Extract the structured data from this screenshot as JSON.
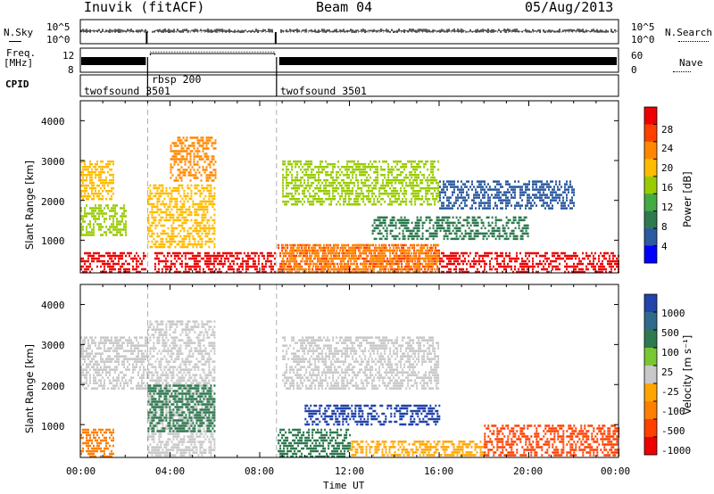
{
  "header": {
    "station": "Inuvik (fitACF)",
    "beam": "Beam 04",
    "date": "05/Aug/2013"
  },
  "side_labels": {
    "nsky": "N.Sky",
    "nsearch": "N.Search",
    "freq_line1": "Freq.",
    "freq_line2": "[MHz]",
    "nave": "Nave",
    "cpid": "CPID"
  },
  "top_axes": {
    "nsky_ticks": [
      "10^5",
      "10^0"
    ],
    "nsearch_ticks": [
      "10^5",
      "10^0"
    ],
    "freq_ticks": [
      "12",
      "8"
    ],
    "nave_ticks": [
      "60",
      "0"
    ]
  },
  "modes": [
    {
      "label": "twofsound 3501",
      "start_hour": 0,
      "end_hour": 3.0
    },
    {
      "label": "rbsp 200",
      "start_hour": 3.0,
      "end_hour": 8.75
    },
    {
      "label": "twofsound 3501",
      "start_hour": 8.75,
      "end_hour": 24
    }
  ],
  "chart_data": [
    {
      "type": "heatmap",
      "name": "power",
      "ylabel": "Slant Range [km]",
      "xlabel": "",
      "xlim_hours": [
        0,
        24
      ],
      "ylim": [
        180,
        4500
      ],
      "yticks": [
        "1000",
        "2000",
        "3000",
        "4000"
      ],
      "colorbar_label": "Power [dB]",
      "colorbar_ticks": [
        "28",
        "24",
        "20",
        "16",
        "12",
        "8",
        "4"
      ],
      "colors": [
        "#ee0000",
        "#ff4000",
        "#ff8800",
        "#ffbb00",
        "#99cc00",
        "#44aa44",
        "#2e7a50",
        "#2a5aa0",
        "#0000ff"
      ],
      "regions": [
        {
          "hours": [
            0.0,
            2.9
          ],
          "range_km": [
            200,
            700
          ],
          "level": 0
        },
        {
          "hours": [
            0.0,
            2.0
          ],
          "range_km": [
            1100,
            1900
          ],
          "level": 4
        },
        {
          "hours": [
            0.0,
            1.5
          ],
          "range_km": [
            2000,
            3000
          ],
          "level": 3
        },
        {
          "hours": [
            3.3,
            8.7
          ],
          "range_km": [
            200,
            700
          ],
          "level": 0
        },
        {
          "hours": [
            3.0,
            6.0
          ],
          "range_km": [
            800,
            2400
          ],
          "level": 3
        },
        {
          "hours": [
            4.0,
            6.0
          ],
          "range_km": [
            2500,
            3600
          ],
          "level": 2
        },
        {
          "hours": [
            8.8,
            16.0
          ],
          "range_km": [
            200,
            900
          ],
          "level": 1
        },
        {
          "hours": [
            9.0,
            16.0
          ],
          "range_km": [
            1900,
            3000
          ],
          "level": 4
        },
        {
          "hours": [
            13.0,
            20.0
          ],
          "range_km": [
            1000,
            1600
          ],
          "level": 6
        },
        {
          "hours": [
            16.0,
            22.0
          ],
          "range_km": [
            1800,
            2500
          ],
          "level": 7
        },
        {
          "hours": [
            16.0,
            24.0
          ],
          "range_km": [
            200,
            700
          ],
          "level": 0
        },
        {
          "hours": [
            9.0,
            16.0
          ],
          "range_km": [
            200,
            900
          ],
          "level": 2
        }
      ]
    },
    {
      "type": "heatmap",
      "name": "velocity",
      "ylabel": "Slant Range [km]",
      "xlabel": "Time UT",
      "xlim_hours": [
        0,
        24
      ],
      "xticks": [
        "00:00",
        "04:00",
        "08:00",
        "12:00",
        "16:00",
        "20:00",
        "00:00"
      ],
      "ylim": [
        180,
        4500
      ],
      "yticks": [
        "1000",
        "2000",
        "3000",
        "4000"
      ],
      "colorbar_label": "Velocity [m s⁻¹]",
      "colorbar_ticks": [
        "1000",
        "500",
        "100",
        "25",
        "-25",
        "-100",
        "-500",
        "-1000"
      ],
      "colors": [
        "#2244aa",
        "#2e6a8a",
        "#2e7a50",
        "#77c833",
        "#c8c8c8",
        "#ffa500",
        "#ff7f00",
        "#ff4000",
        "#ee0000"
      ],
      "regions": [
        {
          "hours": [
            0.0,
            3.0
          ],
          "range_km": [
            1900,
            3200
          ],
          "level": 4
        },
        {
          "hours": [
            0.0,
            1.5
          ],
          "range_km": [
            200,
            900
          ],
          "level": 6
        },
        {
          "hours": [
            3.0,
            6.0
          ],
          "range_km": [
            200,
            3600
          ],
          "level": 4
        },
        {
          "hours": [
            3.0,
            6.0
          ],
          "range_km": [
            800,
            2000
          ],
          "level": 2
        },
        {
          "hours": [
            9.0,
            16.0
          ],
          "range_km": [
            1900,
            3200
          ],
          "level": 4
        },
        {
          "hours": [
            8.8,
            12.0
          ],
          "range_km": [
            200,
            900
          ],
          "level": 2
        },
        {
          "hours": [
            12.0,
            18.0
          ],
          "range_km": [
            200,
            600
          ],
          "level": 5
        },
        {
          "hours": [
            18.0,
            24.0
          ],
          "range_km": [
            200,
            1000
          ],
          "level": 7
        },
        {
          "hours": [
            10.0,
            16.0
          ],
          "range_km": [
            1000,
            1500
          ],
          "level": 0
        }
      ]
    }
  ]
}
